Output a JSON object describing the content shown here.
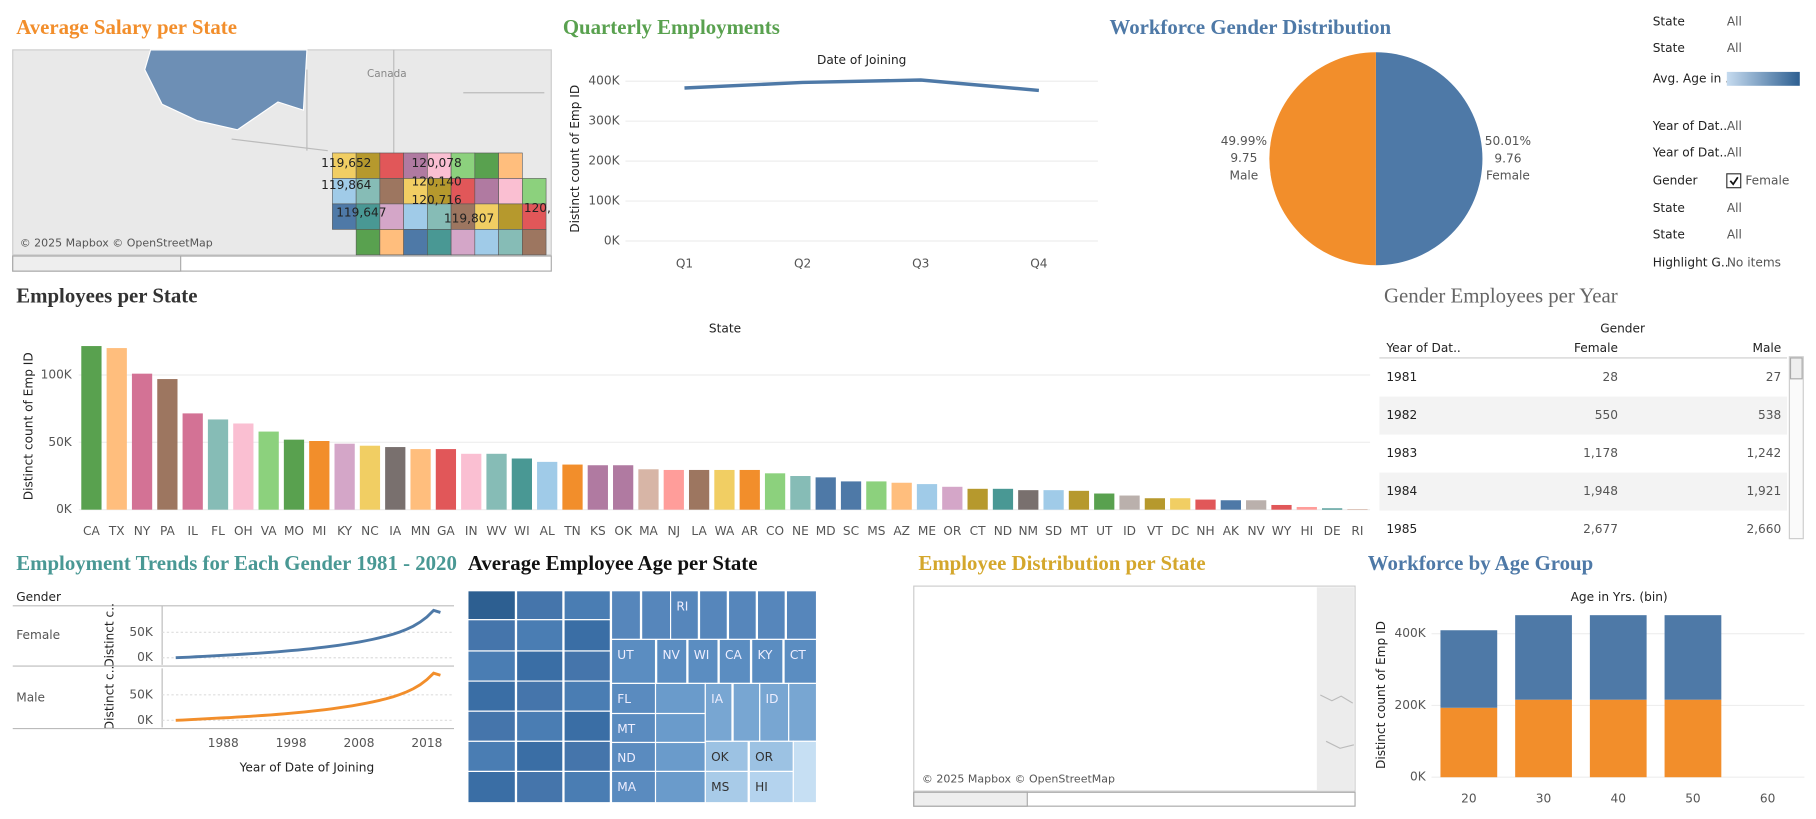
{
  "filters": [
    {
      "label": "State",
      "value": "All"
    },
    {
      "label": "State",
      "value": "All"
    },
    {
      "label": "Avg. Age in .."
    },
    {
      "label": "Year of Dat..",
      "value": "All"
    },
    {
      "label": "Year of Dat..",
      "value": "All"
    },
    {
      "label": "Gender",
      "value": "Female",
      "checked": true
    },
    {
      "label": "State",
      "value": "All"
    },
    {
      "label": "State",
      "value": "All"
    },
    {
      "label": "Highlight G..",
      "value": "No items"
    }
  ],
  "table": {
    "title": "Gender Employees per Year",
    "column_group": "Gender",
    "columns": [
      "Year of Dat..",
      "Female",
      "Male"
    ],
    "rows": [
      [
        "1981",
        "28",
        "27"
      ],
      [
        "1982",
        "550",
        "538"
      ],
      [
        "1983",
        "1,178",
        "1,242"
      ],
      [
        "1984",
        "1,948",
        "1,921"
      ],
      [
        "1985",
        "2,677",
        "2,660"
      ]
    ]
  },
  "chart_data": [
    {
      "type": "map",
      "title": "Average Salary per State",
      "region_label": "Canada",
      "labels": [
        "119,652",
        "120,078",
        "119,864",
        "120,140",
        "120,716",
        "119,647",
        "119,807",
        "120,"
      ],
      "attribution": "© 2025 Mapbox © OpenStreetMap"
    },
    {
      "type": "line",
      "title": "Quarterly Employments",
      "x_title": "Date of Joining",
      "y_title": "Distinct count of Emp ID",
      "categories": [
        "Q1",
        "Q2",
        "Q3",
        "Q4"
      ],
      "values": [
        383000,
        397000,
        403000,
        377000
      ],
      "color": "#4e79a7",
      "ylim": [
        0,
        435000
      ],
      "yticks": [
        {
          "value": 0,
          "label": "0K"
        },
        {
          "value": 100000,
          "label": "100K"
        },
        {
          "value": 200000,
          "label": "200K"
        },
        {
          "value": 300000,
          "label": "300K"
        },
        {
          "value": 400000,
          "label": "400K"
        }
      ],
      "grid": true
    },
    {
      "type": "pie",
      "title": "Workforce Gender Distribution",
      "categories": [
        "Male",
        "Female"
      ],
      "values": [
        49.99,
        50.01
      ],
      "value_labels": [
        "49.99%",
        "50.01%"
      ],
      "secondary_labels": [
        "9.75",
        "9.76"
      ],
      "colors": [
        "#f28e2b",
        "#4e79a7"
      ]
    },
    {
      "type": "bar",
      "title": "Employees per State",
      "x_title": "State",
      "y_title": "Distinct count of Emp ID",
      "categories": [
        "CA",
        "TX",
        "NY",
        "PA",
        "IL",
        "FL",
        "OH",
        "VA",
        "MO",
        "MI",
        "KY",
        "NC",
        "IA",
        "MN",
        "GA",
        "IN",
        "WV",
        "WI",
        "AL",
        "TN",
        "KS",
        "OK",
        "MA",
        "NJ",
        "LA",
        "WA",
        "AR",
        "CO",
        "NE",
        "MD",
        "SC",
        "MS",
        "AZ",
        "ME",
        "OR",
        "CT",
        "ND",
        "NM",
        "SD",
        "MT",
        "UT",
        "ID",
        "VT",
        "DC",
        "NH",
        "AK",
        "NV",
        "WY",
        "HI",
        "DE",
        "RI"
      ],
      "values": [
        121500,
        120000,
        101000,
        97000,
        71500,
        67000,
        64000,
        58000,
        52000,
        51000,
        49000,
        47500,
        46500,
        45000,
        45000,
        41500,
        41500,
        38000,
        35500,
        33500,
        33000,
        33000,
        30000,
        29500,
        29500,
        29500,
        29500,
        27000,
        25000,
        24000,
        21000,
        21000,
        20000,
        19000,
        17000,
        15500,
        15500,
        14500,
        14500,
        14000,
        12000,
        10500,
        8500,
        8500,
        7500,
        7000,
        7000,
        3500,
        2000,
        1000,
        500
      ],
      "colors": [
        "#59a14f",
        "#ffbe7d",
        "#d37295",
        "#9d7660",
        "#d37295",
        "#86bcb6",
        "#fabfd2",
        "#8cd17d",
        "#59a14f",
        "#f28e2b",
        "#d4a6c8",
        "#f1ce63",
        "#79706e",
        "#ffbe7d",
        "#e15759",
        "#fabfd2",
        "#86bcb6",
        "#499894",
        "#a0cbe8",
        "#f28e2b",
        "#b07aa1",
        "#b07aa1",
        "#d7b5a6",
        "#ff9d9a",
        "#9d7660",
        "#f1ce63",
        "#f28e2b",
        "#8cd17d",
        "#86bcb6",
        "#4e79a7",
        "#4e79a7",
        "#8cd17d",
        "#ffbe7d",
        "#a0cbe8",
        "#d4a6c8",
        "#b6992d",
        "#499894",
        "#79706e",
        "#a0cbe8",
        "#b6992d",
        "#59a14f",
        "#bab0ac",
        "#b6992d",
        "#f1ce63",
        "#e15759",
        "#4e79a7",
        "#bab0ac",
        "#e15759",
        "#ff9d9a",
        "#499894",
        "#d7b5a6"
      ],
      "ylim": [
        0,
        129000
      ],
      "yticks": [
        {
          "value": 0,
          "label": "0K"
        },
        {
          "value": 50000,
          "label": "50K"
        },
        {
          "value": 100000,
          "label": "100K"
        }
      ],
      "grid": true
    },
    {
      "type": "faceted_line",
      "title": "Employment Trends for Each Gender 1981 - 2020",
      "facet_title": "Gender",
      "y_title": "Distinct c..",
      "x_title": "Year of Date of Joining",
      "x": [
        1981,
        1982,
        1983,
        1984,
        1985,
        1986,
        1987,
        1988,
        1989,
        1990,
        1991,
        1992,
        1993,
        1994,
        1995,
        1996,
        1997,
        1998,
        1999,
        2000,
        2001,
        2002,
        2003,
        2004,
        2005,
        2006,
        2007,
        2008,
        2009,
        2010,
        2011,
        2012,
        2013,
        2014,
        2015,
        2016,
        2017,
        2018,
        2019,
        2020
      ],
      "series": [
        {
          "name": "Female",
          "color": "#4e79a7",
          "values": [
            28,
            550,
            1178,
            1948,
            2677,
            3400,
            4100,
            4800,
            5500,
            6300,
            7100,
            7900,
            8800,
            9700,
            10700,
            11700,
            12800,
            14000,
            15200,
            16500,
            17900,
            19400,
            21000,
            22700,
            24500,
            26500,
            28600,
            30900,
            33400,
            36100,
            39100,
            42400,
            46200,
            50600,
            55800,
            62000,
            70000,
            80000,
            93000,
            89000
          ]
        },
        {
          "name": "Male",
          "color": "#f28e2b",
          "values": [
            27,
            538,
            1242,
            1921,
            2660,
            3350,
            4050,
            4750,
            5450,
            6250,
            7050,
            7850,
            8750,
            9650,
            10600,
            11600,
            12700,
            13900,
            15100,
            16400,
            17800,
            19300,
            20900,
            22600,
            24400,
            26400,
            28500,
            30800,
            33300,
            36000,
            39000,
            42300,
            46100,
            50500,
            55700,
            61900,
            69800,
            79700,
            92500,
            88500
          ]
        }
      ],
      "xlim": [
        1979,
        2022
      ],
      "xticks": [
        1988,
        1998,
        2008,
        2018
      ],
      "ylim": [
        -14000,
        102000
      ],
      "yticks": [
        {
          "value": 0,
          "label": "0K"
        },
        {
          "value": 50000,
          "label": "50K"
        }
      ]
    },
    {
      "type": "treemap",
      "title": "Average Employee Age per State",
      "labels": [
        "RI",
        "UT",
        "NV",
        "WI",
        "CA",
        "KY",
        "CT",
        "FL",
        "IA",
        "ID",
        "MT",
        "ND",
        "OK",
        "OR",
        "MA",
        "MS",
        "HI"
      ]
    },
    {
      "type": "map",
      "title": "Employee Distribution per State",
      "attribution": "© 2025 Mapbox © OpenStreetMap"
    },
    {
      "type": "stacked_bar",
      "title": "Workforce by Age Group",
      "x_title": "Age in Yrs. (bin)",
      "y_title": "Distinct count of Emp ID",
      "categories": [
        20,
        30,
        40,
        50,
        60
      ],
      "series": [
        {
          "color": "#f28e2b",
          "values": [
            193500,
            216000,
            216000,
            216000,
            null
          ]
        },
        {
          "color": "#4e79a7",
          "values": [
            216000,
            235500,
            235500,
            235500,
            null
          ]
        }
      ],
      "ylim": [
        0,
        455000
      ],
      "yticks": [
        {
          "value": 0,
          "label": "0K"
        },
        {
          "value": 200000,
          "label": "200K"
        },
        {
          "value": 400000,
          "label": "400K"
        }
      ],
      "grid": true
    }
  ]
}
